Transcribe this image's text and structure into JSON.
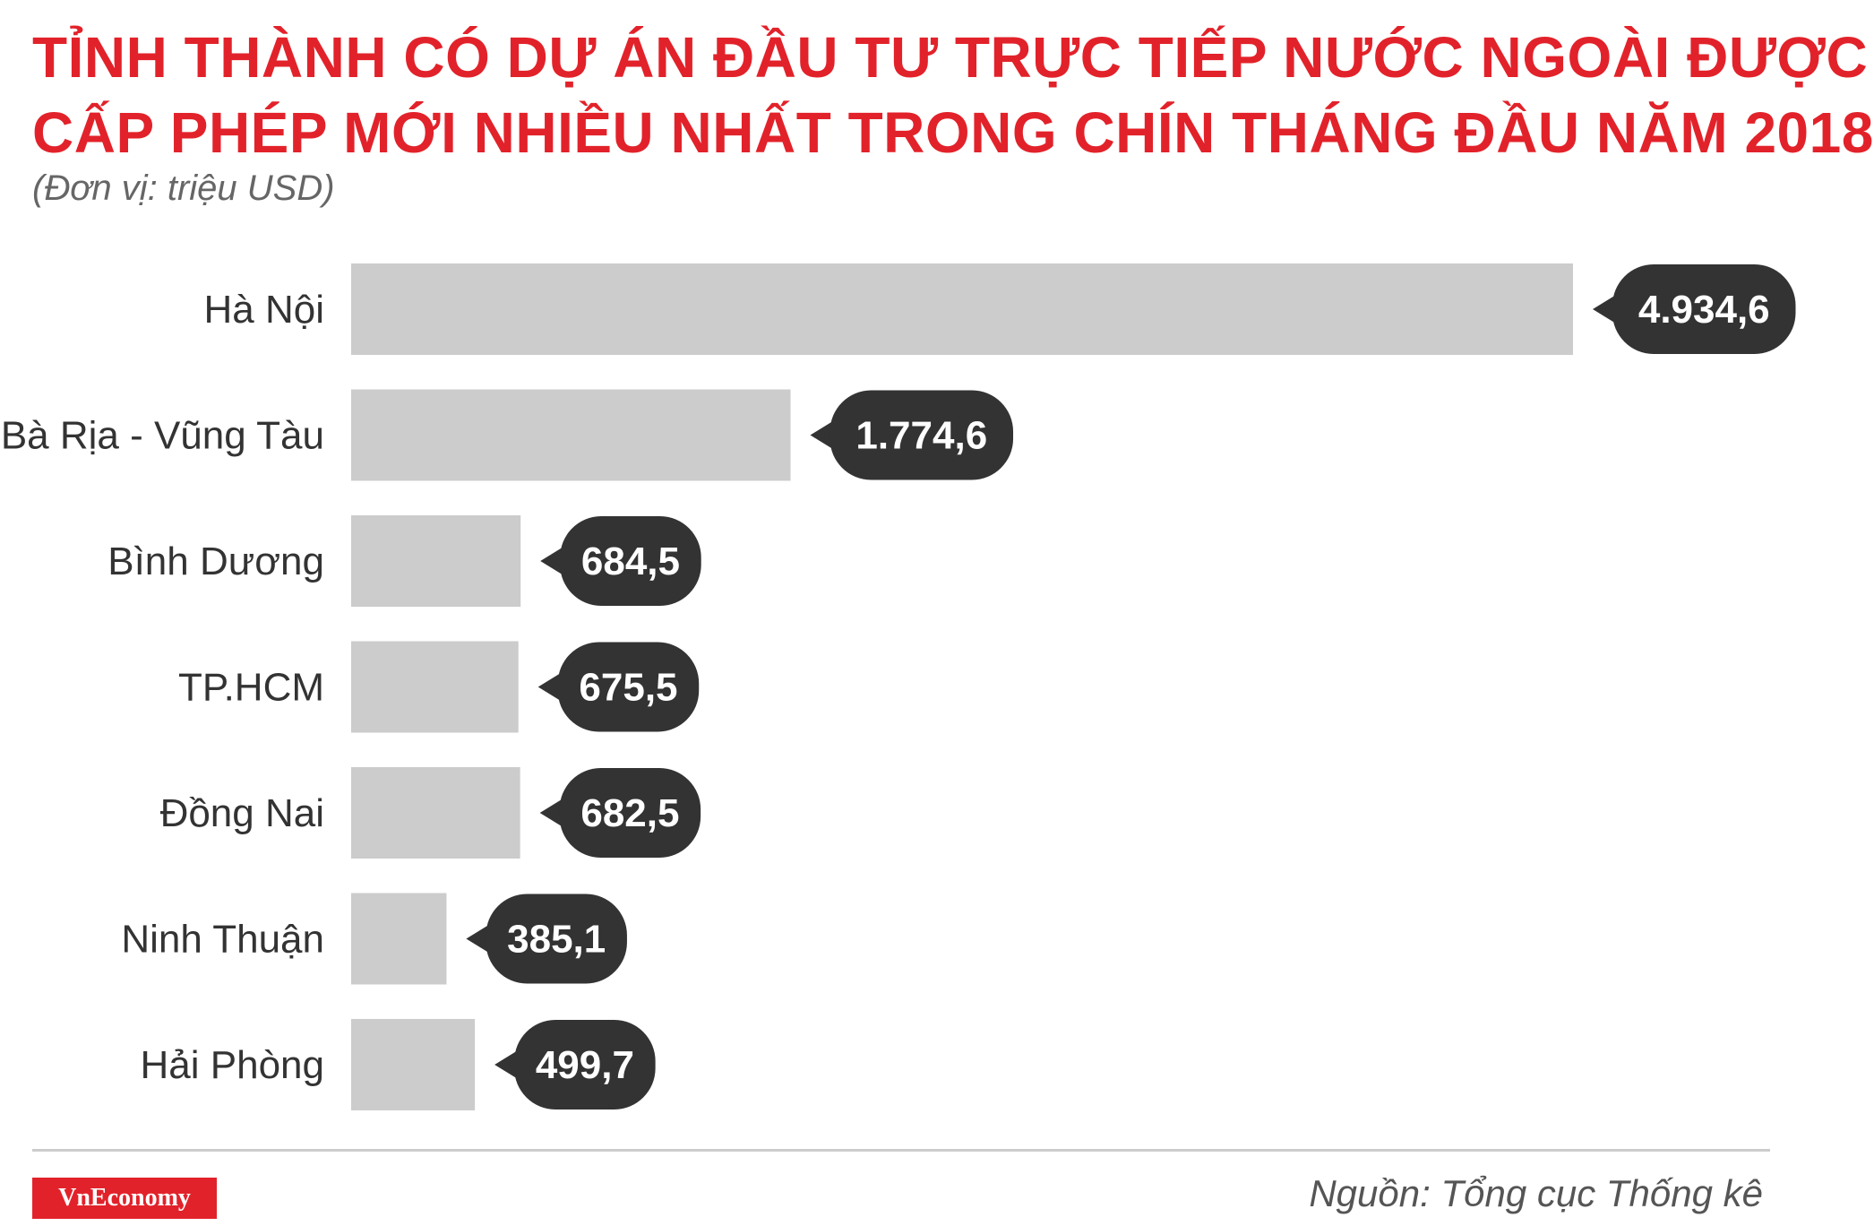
{
  "header": {
    "title_line1": "TỈNH THÀNH CÓ DỰ ÁN ĐẦU TƯ TRỰC TIẾP NƯỚC NGOÀI ĐƯỢC",
    "title_line2": "CẤP PHÉP MỚI NHIỀU NHẤT TRONG CHÍN THÁNG ĐẦU NĂM 2018",
    "unit": "(Đơn vị: triệu USD)"
  },
  "footer": {
    "logo": "VnEconomy",
    "source": "Nguồn: Tổng cục Thống kê"
  },
  "colors": {
    "accent": "#e2222a",
    "bar": "#cccccc",
    "label_bubble": "#333333",
    "category_text": "#333333"
  },
  "chart_data": {
    "type": "bar",
    "orientation": "horizontal",
    "title": "TỈNH THÀNH CÓ DỰ ÁN ĐẦU TƯ TRỰC TIẾP NƯỚC NGOÀI ĐƯỢC CẤP PHÉP MỚI NHIỀU NHẤT TRONG CHÍN THÁNG ĐẦU NĂM 2018",
    "subtitle": "(Đơn vị: triệu USD)",
    "categories": [
      "Hà Nội",
      "Bà Rịa - Vũng Tàu",
      "Bình Dương",
      "TP.HCM",
      "Đồng Nai",
      "Ninh Thuận",
      "Hải Phòng"
    ],
    "values": [
      4934.6,
      1774.6,
      684.5,
      675.5,
      682.5,
      385.1,
      499.7
    ],
    "data_labels": [
      "4.934,6",
      "1.774,6",
      "684,5",
      "675,5",
      "682,5",
      "385,1",
      "499,7"
    ],
    "xlim": [
      0,
      4934.6
    ],
    "grid": false,
    "legend": "none"
  }
}
